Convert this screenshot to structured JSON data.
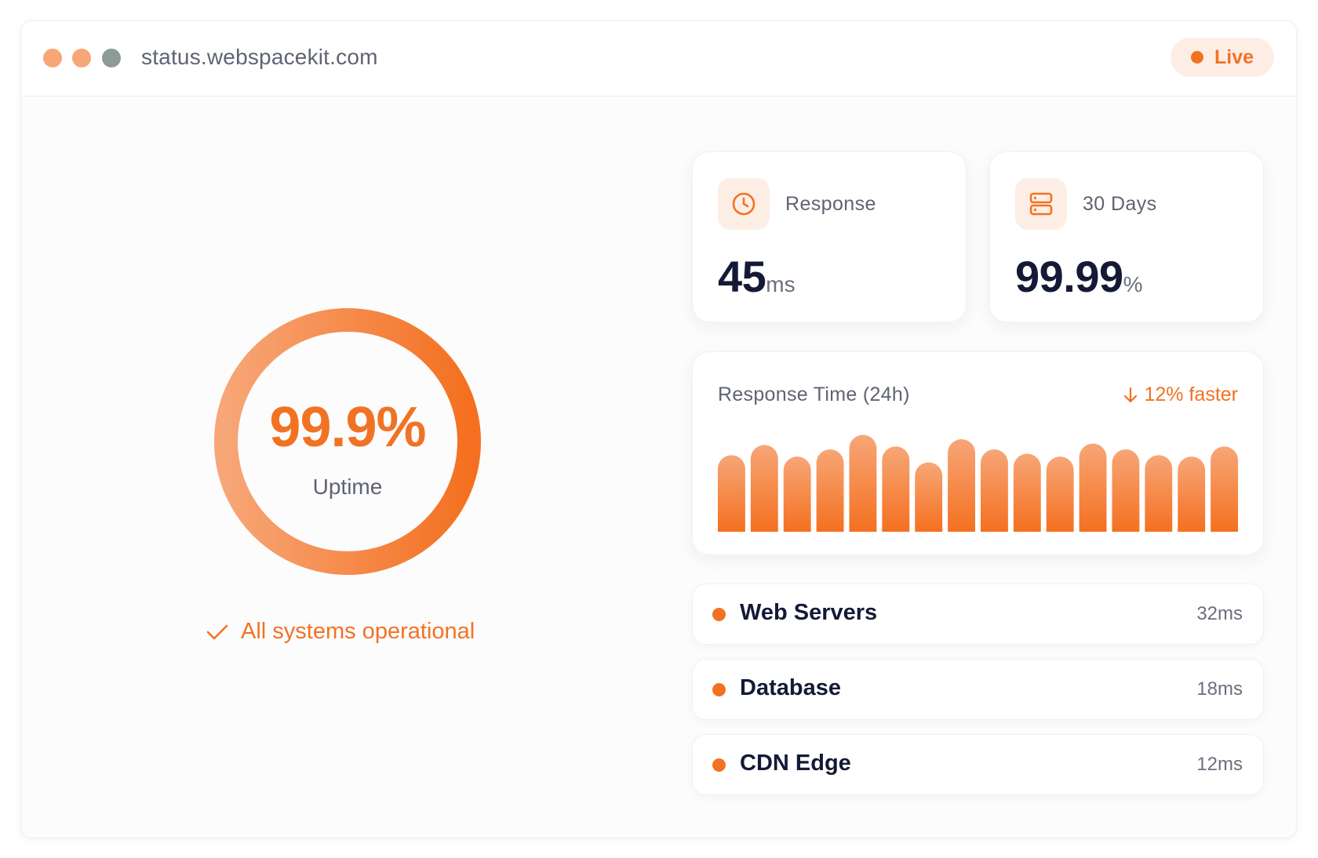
{
  "window": {
    "url": "status.webspacekit.com",
    "live_label": "Live"
  },
  "uptime": {
    "value": "99.9%",
    "label": "Uptime",
    "status_text": "All systems operational",
    "ring_fraction": 1.0
  },
  "stats": [
    {
      "label": "Response",
      "value": "45",
      "unit": "ms",
      "icon": "clock-icon"
    },
    {
      "label": "30 Days",
      "value": "99.99",
      "unit": "%",
      "icon": "server-icon"
    }
  ],
  "response_chart": {
    "title": "Response Time (24h)",
    "trend": "12% faster",
    "trend_icon": "arrow-down-icon"
  },
  "chart_data": {
    "type": "bar",
    "title": "Response Time (24h)",
    "xlabel": "",
    "ylabel": "",
    "ylim": [
      0,
      70
    ],
    "values": [
      53,
      60,
      52,
      57,
      67,
      59,
      48,
      64,
      57,
      54,
      52,
      61,
      57,
      53,
      52,
      59
    ]
  },
  "services": [
    {
      "name": "Web Servers",
      "latency": "32ms"
    },
    {
      "name": "Database",
      "latency": "18ms"
    },
    {
      "name": "CDN Edge",
      "latency": "12ms"
    }
  ],
  "colors": {
    "accent": "#f27224",
    "accent_light": "#f7a677",
    "accent_bg": "#fdeee5",
    "text_dark": "#141a36",
    "text_muted": "#5f6373"
  }
}
